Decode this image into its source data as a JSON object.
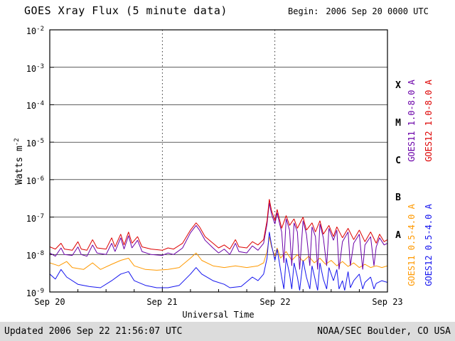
{
  "header": {
    "title": "GOES Xray Flux (5 minute data)",
    "begin_label": "Begin:",
    "begin_value": "2006 Sep 20 0000 UTC"
  },
  "footer": {
    "updated": "Updated 2006 Sep 22 21:56:07 UTC",
    "credit": "NOAA/SEC Boulder, CO USA"
  },
  "chart_data": {
    "type": "line",
    "title": "GOES Xray Flux (5 minute data)",
    "xlabel": "Universal Time",
    "ylabel_base": "Watts m",
    "ylabel_exp": "-2",
    "x_ticks": [
      "Sep 20",
      "Sep 21",
      "Sep 22",
      "Sep 23"
    ],
    "x_range_days": [
      0,
      3
    ],
    "y_tick_exponents": [
      -2,
      -3,
      -4,
      -5,
      -6,
      -7,
      -8,
      -9
    ],
    "ylim_exponents": [
      -9,
      -2
    ],
    "grid": "horizontal solid per decade, vertical dotted per day",
    "legend_position": "right, rotated",
    "flare_classes": [
      {
        "label": "X",
        "exp": -3.5
      },
      {
        "label": "M",
        "exp": -4.5
      },
      {
        "label": "C",
        "exp": -5.5
      },
      {
        "label": "B",
        "exp": -6.5
      },
      {
        "label": "A",
        "exp": -7.5
      }
    ],
    "series": [
      {
        "name": "GOES11 1.0-8.0 A",
        "color": "#6a00a8",
        "points": [
          [
            0.0,
            1.1e-08
          ],
          [
            0.05,
            9e-09
          ],
          [
            0.1,
            1.5e-08
          ],
          [
            0.13,
            1e-08
          ],
          [
            0.2,
            9.5e-09
          ],
          [
            0.25,
            1.6e-08
          ],
          [
            0.28,
            1e-08
          ],
          [
            0.33,
            9e-09
          ],
          [
            0.38,
            1.8e-08
          ],
          [
            0.42,
            1.1e-08
          ],
          [
            0.5,
            1e-08
          ],
          [
            0.55,
            2e-08
          ],
          [
            0.58,
            1.2e-08
          ],
          [
            0.63,
            2.8e-08
          ],
          [
            0.66,
            1.4e-08
          ],
          [
            0.7,
            3.2e-08
          ],
          [
            0.73,
            1.5e-08
          ],
          [
            0.78,
            2.4e-08
          ],
          [
            0.82,
            1.2e-08
          ],
          [
            0.9,
            1e-08
          ],
          [
            1.0,
            9.5e-09
          ],
          [
            1.05,
            1.1e-08
          ],
          [
            1.1,
            1e-08
          ],
          [
            1.18,
            1.5e-08
          ],
          [
            1.25,
            3.8e-08
          ],
          [
            1.3,
            6e-08
          ],
          [
            1.33,
            4.5e-08
          ],
          [
            1.38,
            2.4e-08
          ],
          [
            1.45,
            1.5e-08
          ],
          [
            1.5,
            1.1e-08
          ],
          [
            1.55,
            1.4e-08
          ],
          [
            1.6,
            1e-08
          ],
          [
            1.65,
            2e-08
          ],
          [
            1.68,
            1.2e-08
          ],
          [
            1.75,
            1.1e-08
          ],
          [
            1.8,
            1.7e-08
          ],
          [
            1.85,
            1.3e-08
          ],
          [
            1.9,
            2e-08
          ],
          [
            1.93,
            6.5e-08
          ],
          [
            1.95,
            2.4e-07
          ],
          [
            1.97,
            1.2e-07
          ],
          [
            2.0,
            6.5e-08
          ],
          [
            2.02,
            1.3e-07
          ],
          [
            2.04,
            7e-08
          ],
          [
            2.06,
            4e-08
          ],
          [
            2.08,
            6e-09
          ],
          [
            2.1,
            9e-08
          ],
          [
            2.13,
            4.5e-08
          ],
          [
            2.15,
            5e-09
          ],
          [
            2.17,
            7e-08
          ],
          [
            2.2,
            4e-08
          ],
          [
            2.22,
            4e-09
          ],
          [
            2.25,
            8e-08
          ],
          [
            2.28,
            3.5e-08
          ],
          [
            2.31,
            5e-09
          ],
          [
            2.33,
            5.5e-08
          ],
          [
            2.36,
            3e-08
          ],
          [
            2.38,
            4e-09
          ],
          [
            2.4,
            6.5e-08
          ],
          [
            2.43,
            2.8e-08
          ],
          [
            2.46,
            5e-09
          ],
          [
            2.48,
            5e-08
          ],
          [
            2.52,
            2.4e-08
          ],
          [
            2.55,
            4.5e-08
          ],
          [
            2.57,
            4e-09
          ],
          [
            2.6,
            2.2e-08
          ],
          [
            2.65,
            4e-08
          ],
          [
            2.67,
            5e-09
          ],
          [
            2.7,
            2e-08
          ],
          [
            2.75,
            3.5e-08
          ],
          [
            2.78,
            4e-09
          ],
          [
            2.8,
            1.8e-08
          ],
          [
            2.85,
            3e-08
          ],
          [
            2.88,
            5e-09
          ],
          [
            2.9,
            1.6e-08
          ],
          [
            2.93,
            2.8e-08
          ],
          [
            2.97,
            1.8e-08
          ],
          [
            3.0,
            2e-08
          ]
        ]
      },
      {
        "name": "GOES12 1.0-8.0 A",
        "color": "#dd0000",
        "points": [
          [
            0.0,
            1.6e-08
          ],
          [
            0.05,
            1.4e-08
          ],
          [
            0.1,
            2e-08
          ],
          [
            0.13,
            1.4e-08
          ],
          [
            0.2,
            1.3e-08
          ],
          [
            0.25,
            2.2e-08
          ],
          [
            0.28,
            1.4e-08
          ],
          [
            0.33,
            1.3e-08
          ],
          [
            0.38,
            2.5e-08
          ],
          [
            0.42,
            1.5e-08
          ],
          [
            0.5,
            1.4e-08
          ],
          [
            0.55,
            2.8e-08
          ],
          [
            0.58,
            1.6e-08
          ],
          [
            0.63,
            3.5e-08
          ],
          [
            0.66,
            1.8e-08
          ],
          [
            0.7,
            4e-08
          ],
          [
            0.73,
            2e-08
          ],
          [
            0.78,
            3e-08
          ],
          [
            0.82,
            1.6e-08
          ],
          [
            0.9,
            1.4e-08
          ],
          [
            1.0,
            1.3e-08
          ],
          [
            1.05,
            1.5e-08
          ],
          [
            1.1,
            1.4e-08
          ],
          [
            1.18,
            2e-08
          ],
          [
            1.25,
            4.5e-08
          ],
          [
            1.3,
            7e-08
          ],
          [
            1.33,
            5.5e-08
          ],
          [
            1.38,
            3e-08
          ],
          [
            1.45,
            2e-08
          ],
          [
            1.5,
            1.5e-08
          ],
          [
            1.55,
            1.8e-08
          ],
          [
            1.6,
            1.4e-08
          ],
          [
            1.65,
            2.5e-08
          ],
          [
            1.68,
            1.6e-08
          ],
          [
            1.75,
            1.5e-08
          ],
          [
            1.8,
            2.2e-08
          ],
          [
            1.85,
            1.8e-08
          ],
          [
            1.9,
            2.5e-08
          ],
          [
            1.93,
            8e-08
          ],
          [
            1.95,
            3e-07
          ],
          [
            1.97,
            1.5e-07
          ],
          [
            2.0,
            8e-08
          ],
          [
            2.02,
            1.6e-07
          ],
          [
            2.04,
            9e-08
          ],
          [
            2.06,
            5e-08
          ],
          [
            2.1,
            1.1e-07
          ],
          [
            2.13,
            6e-08
          ],
          [
            2.17,
            9e-08
          ],
          [
            2.2,
            5e-08
          ],
          [
            2.25,
            1e-07
          ],
          [
            2.28,
            4.5e-08
          ],
          [
            2.33,
            7e-08
          ],
          [
            2.36,
            4e-08
          ],
          [
            2.4,
            8e-08
          ],
          [
            2.43,
            3.5e-08
          ],
          [
            2.48,
            6e-08
          ],
          [
            2.52,
            3e-08
          ],
          [
            2.55,
            5.5e-08
          ],
          [
            2.6,
            2.8e-08
          ],
          [
            2.65,
            5e-08
          ],
          [
            2.7,
            2.5e-08
          ],
          [
            2.75,
            4.5e-08
          ],
          [
            2.8,
            2.2e-08
          ],
          [
            2.85,
            4e-08
          ],
          [
            2.9,
            2e-08
          ],
          [
            2.93,
            3.5e-08
          ],
          [
            2.97,
            2.2e-08
          ],
          [
            3.0,
            2.5e-08
          ]
        ]
      },
      {
        "name": "GOES11 0.5-4.0 A",
        "color": "#ff9900",
        "points": [
          [
            0.0,
            6e-09
          ],
          [
            0.08,
            5e-09
          ],
          [
            0.15,
            6.5e-09
          ],
          [
            0.2,
            4.5e-09
          ],
          [
            0.3,
            4e-09
          ],
          [
            0.38,
            6e-09
          ],
          [
            0.45,
            4e-09
          ],
          [
            0.55,
            5.5e-09
          ],
          [
            0.63,
            7e-09
          ],
          [
            0.7,
            8e-09
          ],
          [
            0.75,
            5e-09
          ],
          [
            0.85,
            4e-09
          ],
          [
            0.95,
            3.8e-09
          ],
          [
            1.05,
            4e-09
          ],
          [
            1.15,
            4.5e-09
          ],
          [
            1.25,
            8e-09
          ],
          [
            1.3,
            1.1e-08
          ],
          [
            1.35,
            7e-09
          ],
          [
            1.45,
            5e-09
          ],
          [
            1.55,
            4.5e-09
          ],
          [
            1.65,
            5e-09
          ],
          [
            1.75,
            4.5e-09
          ],
          [
            1.85,
            5e-09
          ],
          [
            1.9,
            6e-09
          ],
          [
            1.93,
            1.2e-08
          ],
          [
            1.95,
            3e-08
          ],
          [
            1.97,
            1.6e-08
          ],
          [
            2.0,
            9e-09
          ],
          [
            2.02,
            1.5e-08
          ],
          [
            2.05,
            8e-09
          ],
          [
            2.1,
            1.2e-08
          ],
          [
            2.15,
            7e-09
          ],
          [
            2.2,
            1e-08
          ],
          [
            2.25,
            6.5e-09
          ],
          [
            2.3,
            9e-09
          ],
          [
            2.35,
            6e-09
          ],
          [
            2.4,
            8e-09
          ],
          [
            2.45,
            5.5e-09
          ],
          [
            2.5,
            7e-09
          ],
          [
            2.55,
            5e-09
          ],
          [
            2.6,
            6.5e-09
          ],
          [
            2.65,
            4.8e-09
          ],
          [
            2.7,
            6e-09
          ],
          [
            2.75,
            4.5e-09
          ],
          [
            2.8,
            5.5e-09
          ],
          [
            2.85,
            4.5e-09
          ],
          [
            2.9,
            5e-09
          ],
          [
            2.95,
            4.5e-09
          ],
          [
            3.0,
            5e-09
          ]
        ]
      },
      {
        "name": "GOES12 0.5-4.0 A",
        "color": "#1414ee",
        "points": [
          [
            0.0,
            3e-09
          ],
          [
            0.05,
            2.2e-09
          ],
          [
            0.1,
            4e-09
          ],
          [
            0.15,
            2.5e-09
          ],
          [
            0.25,
            1.6e-09
          ],
          [
            0.35,
            1.4e-09
          ],
          [
            0.45,
            1.3e-09
          ],
          [
            0.55,
            2e-09
          ],
          [
            0.63,
            3e-09
          ],
          [
            0.7,
            3.5e-09
          ],
          [
            0.75,
            2e-09
          ],
          [
            0.85,
            1.5e-09
          ],
          [
            0.95,
            1.3e-09
          ],
          [
            1.05,
            1.3e-09
          ],
          [
            1.15,
            1.5e-09
          ],
          [
            1.25,
            3e-09
          ],
          [
            1.3,
            4.5e-09
          ],
          [
            1.35,
            3e-09
          ],
          [
            1.45,
            2e-09
          ],
          [
            1.55,
            1.6e-09
          ],
          [
            1.6,
            1.3e-09
          ],
          [
            1.7,
            1.4e-09
          ],
          [
            1.8,
            2.5e-09
          ],
          [
            1.85,
            2e-09
          ],
          [
            1.9,
            3e-09
          ],
          [
            1.93,
            8e-09
          ],
          [
            1.95,
            4e-08
          ],
          [
            1.97,
            1.8e-08
          ],
          [
            2.0,
            7e-09
          ],
          [
            2.02,
            1.4e-08
          ],
          [
            2.04,
            6e-09
          ],
          [
            2.06,
            2.5e-09
          ],
          [
            2.08,
            1.2e-09
          ],
          [
            2.1,
            8e-09
          ],
          [
            2.13,
            3e-09
          ],
          [
            2.15,
            1.2e-09
          ],
          [
            2.17,
            6e-09
          ],
          [
            2.2,
            2.5e-09
          ],
          [
            2.22,
            1.1e-09
          ],
          [
            2.25,
            7e-09
          ],
          [
            2.28,
            2.5e-09
          ],
          [
            2.31,
            1.2e-09
          ],
          [
            2.33,
            5e-09
          ],
          [
            2.36,
            2e-09
          ],
          [
            2.38,
            1.1e-09
          ],
          [
            2.4,
            6e-09
          ],
          [
            2.43,
            2.2e-09
          ],
          [
            2.46,
            1.2e-09
          ],
          [
            2.48,
            4.5e-09
          ],
          [
            2.52,
            2e-09
          ],
          [
            2.55,
            4e-09
          ],
          [
            2.57,
            1.2e-09
          ],
          [
            2.6,
            2e-09
          ],
          [
            2.62,
            1.1e-09
          ],
          [
            2.65,
            3.5e-09
          ],
          [
            2.67,
            1.3e-09
          ],
          [
            2.7,
            2e-09
          ],
          [
            2.75,
            3e-09
          ],
          [
            2.78,
            1.2e-09
          ],
          [
            2.8,
            1.8e-09
          ],
          [
            2.85,
            2.5e-09
          ],
          [
            2.88,
            1.2e-09
          ],
          [
            2.9,
            1.7e-09
          ],
          [
            2.95,
            2e-09
          ],
          [
            3.0,
            1.8e-09
          ]
        ]
      }
    ]
  }
}
